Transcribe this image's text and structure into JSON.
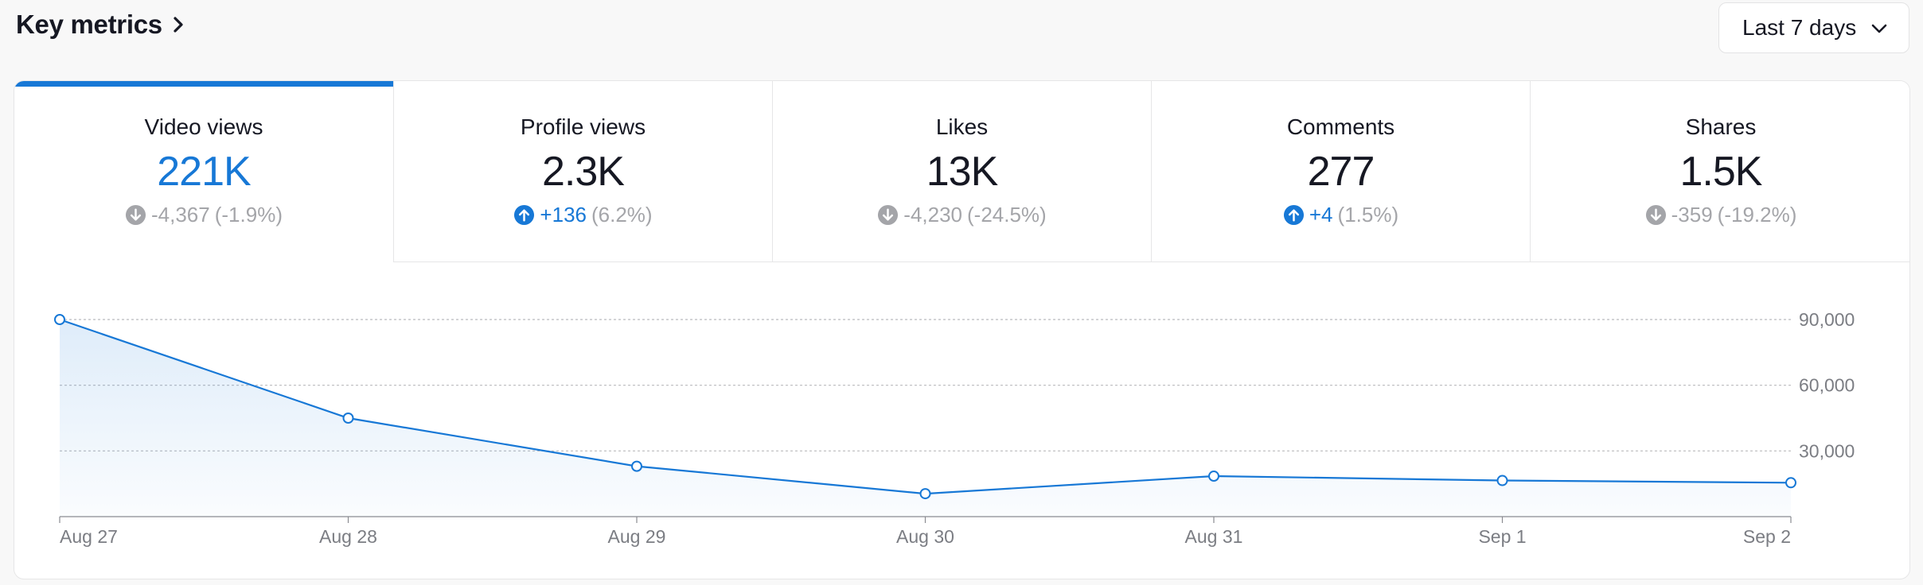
{
  "header": {
    "title": "Key metrics"
  },
  "range": {
    "selected": "Last 7 days"
  },
  "colors": {
    "accent": "#1778d6",
    "muted": "#a4a5a9"
  },
  "metrics": [
    {
      "label": "Video views",
      "value": "221K",
      "delta": "-4,367",
      "pct": "(-1.9%)",
      "direction": "down",
      "active": true
    },
    {
      "label": "Profile views",
      "value": "2.3K",
      "delta": "+136",
      "pct": "(6.2%)",
      "direction": "up",
      "active": false
    },
    {
      "label": "Likes",
      "value": "13K",
      "delta": "-4,230",
      "pct": "(-24.5%)",
      "direction": "down",
      "active": false
    },
    {
      "label": "Comments",
      "value": "277",
      "delta": "+4",
      "pct": "(1.5%)",
      "direction": "up",
      "active": false
    },
    {
      "label": "Shares",
      "value": "1.5K",
      "delta": "-359",
      "pct": "(-19.2%)",
      "direction": "down",
      "active": false
    }
  ],
  "chart_data": {
    "type": "line",
    "title": "Video views",
    "categories": [
      "Aug 27",
      "Aug 28",
      "Aug 29",
      "Aug 30",
      "Aug 31",
      "Sep 1",
      "Sep 2"
    ],
    "series": [
      {
        "name": "Video views",
        "values": [
          90000,
          45000,
          23000,
          10500,
          18500,
          16500,
          15500
        ]
      }
    ],
    "ylim": [
      0,
      90000
    ],
    "yticks": [
      30000,
      60000,
      90000
    ],
    "ytick_labels": [
      "30,000",
      "60,000",
      "90,000"
    ],
    "grid": true,
    "area_fill": true
  }
}
